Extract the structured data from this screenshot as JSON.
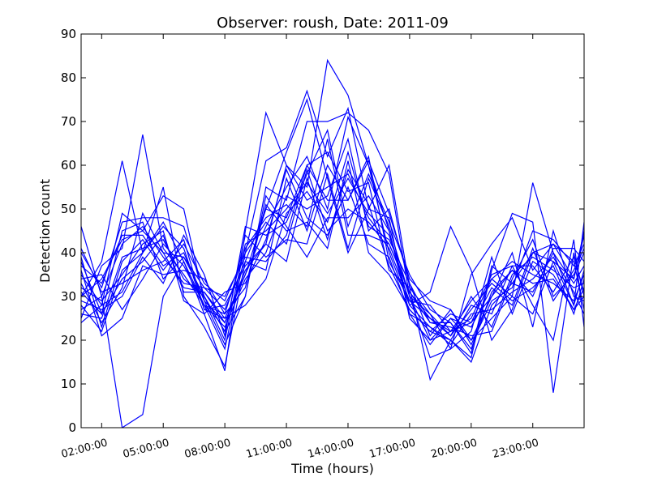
{
  "chart_data": {
    "type": "line",
    "title": "Observer: roush, Date: 2011-09",
    "xlabel": "Time (hours)",
    "ylabel": "Detection count",
    "ylim": [
      0,
      90
    ],
    "xlim": [
      1.0,
      25.5
    ],
    "yticks": [
      0,
      10,
      20,
      30,
      40,
      50,
      60,
      70,
      80,
      90
    ],
    "xticks": [
      {
        "value": 2,
        "label": "02:00:00"
      },
      {
        "value": 5,
        "label": "05:00:00"
      },
      {
        "value": 8,
        "label": "08:00:00"
      },
      {
        "value": 11,
        "label": "11:00:00"
      },
      {
        "value": 14,
        "label": "14:00:00"
      },
      {
        "value": 17,
        "label": "17:00:00"
      },
      {
        "value": 20,
        "label": "20:00:00"
      },
      {
        "value": 23,
        "label": "23:00:00"
      }
    ],
    "grid": false,
    "legend": false,
    "line_color": "#0000ff",
    "x": [
      1,
      2,
      3,
      4,
      5,
      6,
      7,
      8,
      9,
      10,
      11,
      12,
      13,
      14,
      15,
      16,
      17,
      18,
      19,
      20,
      21,
      22,
      23,
      24,
      25,
      25.5
    ],
    "series": [
      {
        "values": [
          46,
          30,
          0,
          3,
          30,
          38,
          26,
          13,
          45,
          72,
          60,
          55,
          84,
          76,
          60,
          45,
          26,
          23,
          20,
          15,
          28,
          33,
          40,
          38,
          28,
          47
        ]
      },
      {
        "values": [
          30,
          38,
          61,
          40,
          55,
          30,
          23,
          14,
          38,
          50,
          63,
          75,
          57,
          40,
          50,
          60,
          32,
          11,
          20,
          16,
          36,
          49,
          47,
          8,
          40,
          30
        ]
      },
      {
        "values": [
          25,
          37,
          41,
          67,
          41,
          35,
          28,
          18,
          40,
          61,
          64,
          77,
          62,
          73,
          50,
          48,
          25,
          20,
          25,
          20,
          25,
          30,
          56,
          40,
          33,
          37
        ]
      },
      {
        "values": [
          40,
          32,
          47,
          48,
          48,
          46,
          30,
          22,
          30,
          55,
          52,
          70,
          70,
          72,
          68,
          58,
          30,
          16,
          18,
          35,
          42,
          48,
          36,
          42,
          38,
          27
        ]
      },
      {
        "values": [
          35,
          28,
          49,
          45,
          53,
          50,
          29,
          24,
          35,
          46,
          55,
          62,
          50,
          71,
          60,
          40,
          28,
          31,
          46,
          36,
          20,
          27,
          40,
          42,
          34,
          45
        ]
      },
      {
        "values": [
          33,
          24,
          32,
          49,
          40,
          39,
          30,
          20,
          42,
          45,
          50,
          56,
          49,
          57,
          49,
          44,
          30,
          20,
          22,
          25,
          35,
          37,
          28,
          20,
          43,
          23
        ]
      },
      {
        "values": [
          31,
          26,
          34,
          38,
          44,
          31,
          31,
          25,
          35,
          50,
          48,
          60,
          63,
          54,
          56,
          36,
          32,
          26,
          18,
          22,
          39,
          26,
          38,
          35,
          27,
          32
        ]
      },
      {
        "values": [
          28,
          22,
          36,
          40,
          46,
          41,
          27,
          28,
          37,
          42,
          60,
          52,
          55,
          58,
          48,
          42,
          31,
          24,
          23,
          21,
          22,
          34,
          43,
          30,
          35,
          40
        ]
      },
      {
        "values": [
          36,
          21,
          25,
          37,
          35,
          36,
          34,
          26,
          32,
          51,
          45,
          47,
          41,
          61,
          40,
          35,
          27,
          22,
          26,
          24,
          30,
          40,
          23,
          45,
          30,
          29
        ]
      },
      {
        "values": [
          39,
          23,
          38,
          43,
          36,
          42,
          33,
          29,
          40,
          47,
          42,
          59,
          45,
          50,
          47,
          41,
          29,
          25,
          21,
          27,
          33,
          29,
          32,
          37,
          26,
          34
        ]
      },
      {
        "values": [
          29,
          27,
          30,
          39,
          33,
          44,
          35,
          21,
          46,
          44,
          47,
          58,
          68,
          46,
          58,
          47,
          35,
          27,
          24,
          18,
          31,
          36,
          30,
          41,
          41,
          38
        ]
      },
      {
        "values": [
          34,
          35,
          27,
          34,
          42,
          37,
          28,
          23,
          34,
          40,
          53,
          50,
          53,
          66,
          45,
          50,
          33,
          21,
          27,
          19,
          29,
          32,
          45,
          43,
          37,
          42
        ]
      },
      {
        "values": [
          27,
          30,
          42,
          46,
          39,
          33,
          32,
          27,
          38,
          36,
          57,
          45,
          60,
          52,
          62,
          38,
          29,
          28,
          22,
          29,
          34,
          38,
          35,
          33,
          29,
          35
        ]
      },
      {
        "values": [
          37,
          33,
          44,
          44,
          37,
          40,
          29,
          19,
          30,
          53,
          46,
          39,
          48,
          48,
          53,
          45,
          28,
          23,
          19,
          26,
          27,
          31,
          34,
          39,
          31,
          26
        ]
      },
      {
        "values": [
          32,
          29,
          35,
          42,
          45,
          29,
          26,
          31,
          33,
          43,
          59,
          48,
          44,
          55,
          42,
          39,
          26,
          19,
          25,
          23,
          32,
          28,
          41,
          29,
          36,
          41
        ]
      },
      {
        "values": [
          26,
          25,
          39,
          41,
          43,
          34,
          30,
          22,
          44,
          39,
          43,
          42,
          58,
          41,
          57,
          46,
          30,
          26,
          21,
          30,
          23,
          35,
          39,
          36,
          32,
          33
        ]
      },
      {
        "values": [
          41,
          31,
          33,
          36,
          38,
          43,
          27,
          25,
          28,
          34,
          49,
          54,
          47,
          63,
          46,
          43,
          33,
          24,
          24,
          17,
          37,
          33,
          31,
          40,
          28,
          36
        ]
      },
      {
        "values": [
          30,
          34,
          43,
          45,
          40,
          32,
          31,
          24,
          36,
          42,
          38,
          57,
          43,
          59,
          51,
          37,
          27,
          22,
          20,
          28,
          26,
          37,
          37,
          31,
          39,
          31
        ]
      },
      {
        "values": [
          24,
          28,
          31,
          40,
          47,
          38,
          28,
          26,
          41,
          48,
          51,
          46,
          66,
          44,
          44,
          42,
          31,
          25,
          22,
          24,
          34,
          30,
          26,
          38,
          34,
          44
        ]
      },
      {
        "values": [
          38,
          26,
          45,
          47,
          34,
          39,
          32,
          30,
          39,
          38,
          44,
          60,
          52,
          52,
          61,
          49,
          34,
          29,
          27,
          20,
          30,
          36,
          33,
          34,
          27,
          30
        ]
      }
    ]
  }
}
